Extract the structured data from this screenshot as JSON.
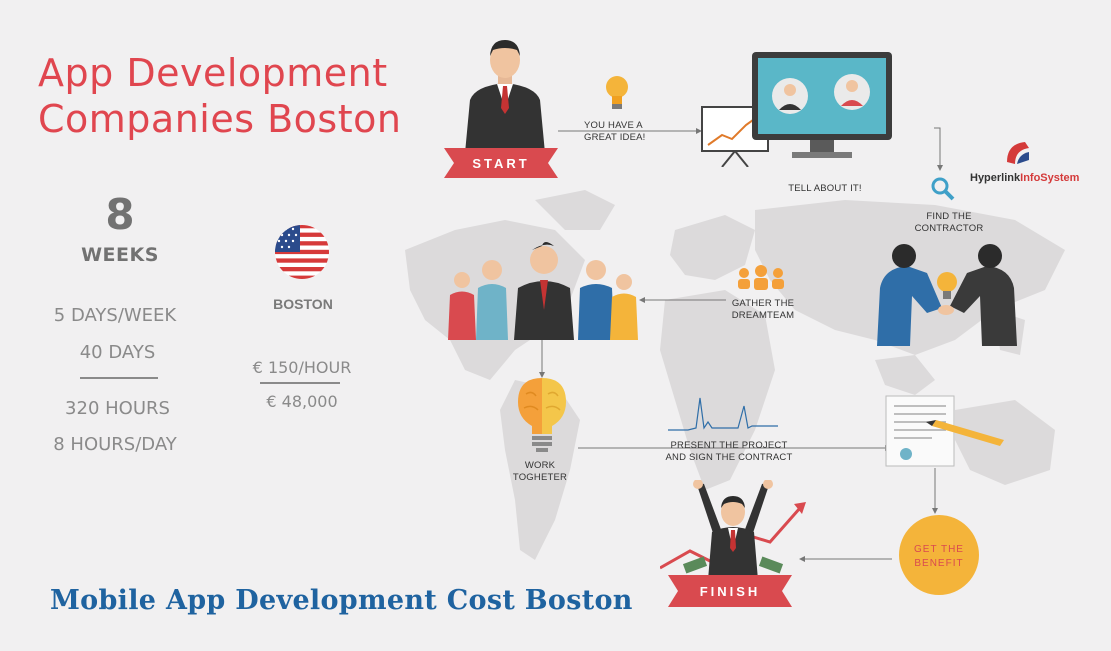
{
  "title": {
    "line1": "App Development",
    "line2": "Companies Boston"
  },
  "duration": {
    "weeks_number": "8",
    "weeks_label": "WEEKS",
    "days_per_week": "5 DAYS/WEEK",
    "days": "40 DAYS",
    "hours": "320 HOURS",
    "hours_per_day": "8 HOURS/DAY"
  },
  "location": {
    "city": "BOSTON",
    "rate": "€ 150/HOUR",
    "total": "€ 48,000"
  },
  "steps": {
    "start": "START",
    "idea": [
      "YOU HAVE A",
      "GREAT IDEA!"
    ],
    "tell": "TELL ABOUT IT!",
    "find": [
      "FIND THE",
      "CONTRACTOR"
    ],
    "gather": [
      "GATHER THE",
      "DREAMTEAM"
    ],
    "present": [
      "PRESENT THE PROJECT",
      "AND SIGN THE CONTRACT"
    ],
    "work": [
      "WORK",
      "TOGHETER"
    ],
    "benefit": [
      "GET THE",
      "BENEFIT"
    ],
    "finish": "FINISH"
  },
  "logo": {
    "part1": "Hyperlink",
    "part2": "InfoSystem"
  },
  "footer": "Mobile App Development Cost Boston",
  "colors": {
    "accent_red": "#e0464f",
    "footer_blue": "#1f63a0",
    "monitor_teal": "#5ab7c8",
    "bulb_yellow": "#f4b43a",
    "map_gray": "#dcdadb"
  },
  "icons": [
    "lightbulb-icon",
    "monitor-icon",
    "chart-board-icon",
    "magnifier-icon",
    "handshake-icon",
    "team-icon",
    "brain-icon",
    "document-icon",
    "sun-icon",
    "us-flag-icon",
    "trend-arrow-icon"
  ]
}
